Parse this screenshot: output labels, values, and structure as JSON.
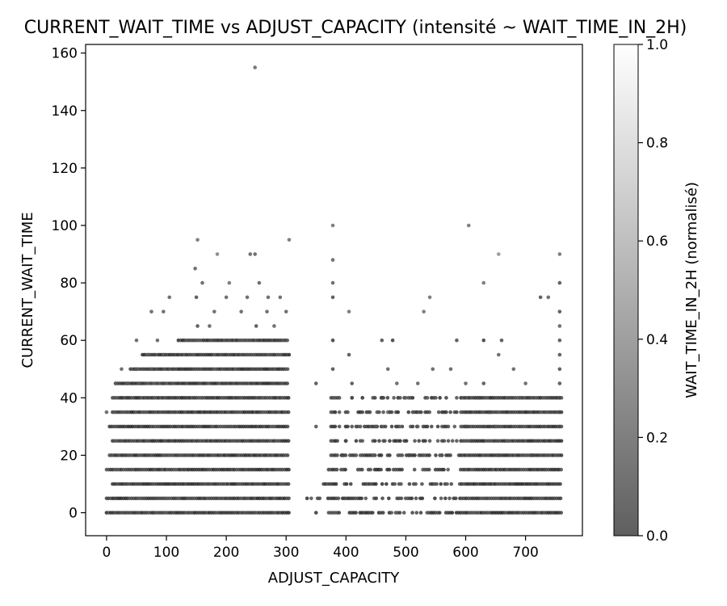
{
  "chart_data": {
    "type": "scatter",
    "title": "CURRENT_WAIT_TIME vs ADJUST_CAPACITY (intensité ~ WAIT_TIME_IN_2H)",
    "xlabel": "ADJUST_CAPACITY",
    "ylabel": "CURRENT_WAIT_TIME",
    "xlim": [
      -35,
      795
    ],
    "ylim": [
      -8,
      163
    ],
    "x_ticks": [
      0,
      100,
      200,
      300,
      400,
      500,
      600,
      700
    ],
    "y_ticks": [
      0,
      20,
      40,
      60,
      80,
      100,
      120,
      140,
      160
    ],
    "colorbar": {
      "label": "WAIT_TIME_IN_2H (normalisé)",
      "range": [
        0.0,
        1.0
      ],
      "ticks": [
        0.0,
        0.2,
        0.4,
        0.6,
        0.8,
        1.0
      ],
      "low_color": "#5f5f5f",
      "high_color": "#ffffff"
    },
    "marker_color_base": "#000000",
    "grid": false,
    "points": [
      {
        "x": 248,
        "y": 155,
        "c": 0.35
      },
      {
        "x": 378,
        "y": 100,
        "c": 0.4
      },
      {
        "x": 605,
        "y": 100,
        "c": 0.4
      },
      {
        "x": 152,
        "y": 95,
        "c": 0.4
      },
      {
        "x": 305,
        "y": 95,
        "c": 0.4
      },
      {
        "x": 185,
        "y": 90,
        "c": 0.5
      },
      {
        "x": 240,
        "y": 90,
        "c": 0.3
      },
      {
        "x": 248,
        "y": 90,
        "c": 0.3
      },
      {
        "x": 655,
        "y": 90,
        "c": 0.6
      },
      {
        "x": 757,
        "y": 90,
        "c": 0.4
      },
      {
        "x": 148,
        "y": 85,
        "c": 0.3
      },
      {
        "x": 378,
        "y": 88,
        "c": 0.3
      },
      {
        "x": 160,
        "y": 80,
        "c": 0.3
      },
      {
        "x": 205,
        "y": 80,
        "c": 0.4
      },
      {
        "x": 255,
        "y": 80,
        "c": 0.3
      },
      {
        "x": 378,
        "y": 80,
        "c": 0.3
      },
      {
        "x": 630,
        "y": 80,
        "c": 0.4
      },
      {
        "x": 757,
        "y": 80,
        "c": 0.2
      },
      {
        "x": 105,
        "y": 75,
        "c": 0.3
      },
      {
        "x": 150,
        "y": 75,
        "c": 0.2
      },
      {
        "x": 200,
        "y": 75,
        "c": 0.3
      },
      {
        "x": 235,
        "y": 75,
        "c": 0.3
      },
      {
        "x": 270,
        "y": 75,
        "c": 0.3
      },
      {
        "x": 290,
        "y": 75,
        "c": 0.3
      },
      {
        "x": 378,
        "y": 75,
        "c": 0.2
      },
      {
        "x": 540,
        "y": 75,
        "c": 0.4
      },
      {
        "x": 725,
        "y": 75,
        "c": 0.2
      },
      {
        "x": 738,
        "y": 75,
        "c": 0.3
      },
      {
        "x": 75,
        "y": 70,
        "c": 0.3
      },
      {
        "x": 95,
        "y": 70,
        "c": 0.3
      },
      {
        "x": 180,
        "y": 70,
        "c": 0.3
      },
      {
        "x": 225,
        "y": 70,
        "c": 0.3
      },
      {
        "x": 268,
        "y": 70,
        "c": 0.3
      },
      {
        "x": 300,
        "y": 70,
        "c": 0.3
      },
      {
        "x": 405,
        "y": 70,
        "c": 0.4
      },
      {
        "x": 530,
        "y": 70,
        "c": 0.4
      },
      {
        "x": 757,
        "y": 70,
        "c": 0.2
      },
      {
        "x": 152,
        "y": 65,
        "c": 0.2
      },
      {
        "x": 172,
        "y": 65,
        "c": 0.3
      },
      {
        "x": 250,
        "y": 65,
        "c": 0.2
      },
      {
        "x": 280,
        "y": 65,
        "c": 0.3
      },
      {
        "x": 757,
        "y": 65,
        "c": 0.3
      },
      {
        "x": 50,
        "y": 60,
        "c": 0.3
      },
      {
        "x": 85,
        "y": 60,
        "c": 0.3
      },
      {
        "x": 378,
        "y": 60,
        "c": 0.1
      },
      {
        "x": 460,
        "y": 60,
        "c": 0.2
      },
      {
        "x": 478,
        "y": 60,
        "c": 0.1
      },
      {
        "x": 585,
        "y": 60,
        "c": 0.2
      },
      {
        "x": 630,
        "y": 60,
        "c": 0.1
      },
      {
        "x": 660,
        "y": 60,
        "c": 0.2
      },
      {
        "x": 757,
        "y": 60,
        "c": 0.2
      },
      {
        "x": 70,
        "y": 55,
        "c": 0.3
      },
      {
        "x": 95,
        "y": 55,
        "c": 0.3
      },
      {
        "x": 405,
        "y": 55,
        "c": 0.2
      },
      {
        "x": 655,
        "y": 55,
        "c": 0.3
      },
      {
        "x": 757,
        "y": 55,
        "c": 0.2
      },
      {
        "x": 25,
        "y": 50,
        "c": 0.3
      },
      {
        "x": 50,
        "y": 50,
        "c": 0.3
      },
      {
        "x": 75,
        "y": 50,
        "c": 0.3
      },
      {
        "x": 378,
        "y": 50,
        "c": 0.2
      },
      {
        "x": 470,
        "y": 50,
        "c": 0.3
      },
      {
        "x": 545,
        "y": 50,
        "c": 0.3
      },
      {
        "x": 575,
        "y": 50,
        "c": 0.3
      },
      {
        "x": 680,
        "y": 50,
        "c": 0.3
      },
      {
        "x": 757,
        "y": 50,
        "c": 0.2
      },
      {
        "x": 15,
        "y": 45,
        "c": 0.3
      },
      {
        "x": 35,
        "y": 45,
        "c": 0.3
      },
      {
        "x": 55,
        "y": 45,
        "c": 0.3
      },
      {
        "x": 350,
        "y": 45,
        "c": 0.2
      },
      {
        "x": 410,
        "y": 45,
        "c": 0.2
      },
      {
        "x": 485,
        "y": 45,
        "c": 0.3
      },
      {
        "x": 520,
        "y": 45,
        "c": 0.3
      },
      {
        "x": 600,
        "y": 45,
        "c": 0.3
      },
      {
        "x": 630,
        "y": 45,
        "c": 0.2
      },
      {
        "x": 700,
        "y": 45,
        "c": 0.3
      },
      {
        "x": 757,
        "y": 45,
        "c": 0.2
      },
      {
        "x": 410,
        "y": 40,
        "c": 0.2
      },
      {
        "x": 460,
        "y": 40,
        "c": 0.2
      },
      {
        "x": 500,
        "y": 40,
        "c": 0.3
      },
      {
        "x": 550,
        "y": 40,
        "c": 0.2
      },
      {
        "x": 620,
        "y": 40,
        "c": 0.2
      },
      {
        "x": 690,
        "y": 40,
        "c": 0.3
      },
      {
        "x": 757,
        "y": 40,
        "c": 0.2
      },
      {
        "x": 0,
        "y": 35,
        "c": 0.3
      },
      {
        "x": 440,
        "y": 35,
        "c": 0.2
      },
      {
        "x": 470,
        "y": 35,
        "c": 0.3
      },
      {
        "x": 555,
        "y": 35,
        "c": 0.2
      },
      {
        "x": 640,
        "y": 35,
        "c": 0.2
      },
      {
        "x": 757,
        "y": 35,
        "c": 0.2
      },
      {
        "x": 350,
        "y": 30,
        "c": 0.2
      },
      {
        "x": 420,
        "y": 30,
        "c": 0.2
      },
      {
        "x": 450,
        "y": 30,
        "c": 0.3
      },
      {
        "x": 490,
        "y": 30,
        "c": 0.3
      },
      {
        "x": 520,
        "y": 30,
        "c": 0.3
      },
      {
        "x": 600,
        "y": 30,
        "c": 0.2
      },
      {
        "x": 650,
        "y": 30,
        "c": 0.3
      },
      {
        "x": 757,
        "y": 30,
        "c": 0.2
      },
      {
        "x": 400,
        "y": 25,
        "c": 0.2
      },
      {
        "x": 465,
        "y": 25,
        "c": 0.2
      },
      {
        "x": 540,
        "y": 25,
        "c": 0.2
      },
      {
        "x": 610,
        "y": 25,
        "c": 0.2
      },
      {
        "x": 670,
        "y": 25,
        "c": 0.3
      },
      {
        "x": 395,
        "y": 20,
        "c": 0.2
      },
      {
        "x": 445,
        "y": 20,
        "c": 0.3
      },
      {
        "x": 505,
        "y": 20,
        "c": 0.2
      },
      {
        "x": 560,
        "y": 20,
        "c": 0.3
      },
      {
        "x": 655,
        "y": 20,
        "c": 0.2
      },
      {
        "x": 710,
        "y": 20,
        "c": 0.2
      }
    ],
    "dense_rows": [
      {
        "y": 0,
        "segments": [
          [
            0,
            305
          ],
          [
            350,
            760
          ]
        ]
      },
      {
        "y": 5,
        "segments": [
          [
            0,
            305
          ],
          [
            335,
            760
          ]
        ]
      },
      {
        "y": 10,
        "segments": [
          [
            10,
            305
          ],
          [
            345,
            760
          ]
        ]
      },
      {
        "y": 15,
        "segments": [
          [
            0,
            305
          ],
          [
            350,
            760
          ]
        ]
      },
      {
        "y": 20,
        "segments": [
          [
            5,
            305
          ],
          [
            375,
            760
          ]
        ]
      },
      {
        "y": 25,
        "segments": [
          [
            10,
            305
          ],
          [
            375,
            760
          ]
        ]
      },
      {
        "y": 30,
        "segments": [
          [
            5,
            305
          ],
          [
            375,
            760
          ]
        ]
      },
      {
        "y": 35,
        "segments": [
          [
            10,
            305
          ],
          [
            375,
            760
          ]
        ]
      },
      {
        "y": 40,
        "segments": [
          [
            10,
            305
          ],
          [
            375,
            760
          ]
        ]
      },
      {
        "y": 45,
        "segments": [
          [
            15,
            305
          ]
        ]
      },
      {
        "y": 50,
        "segments": [
          [
            40,
            305
          ]
        ]
      },
      {
        "y": 55,
        "segments": [
          [
            60,
            305
          ]
        ]
      },
      {
        "y": 60,
        "segments": [
          [
            120,
            305
          ]
        ]
      }
    ]
  }
}
